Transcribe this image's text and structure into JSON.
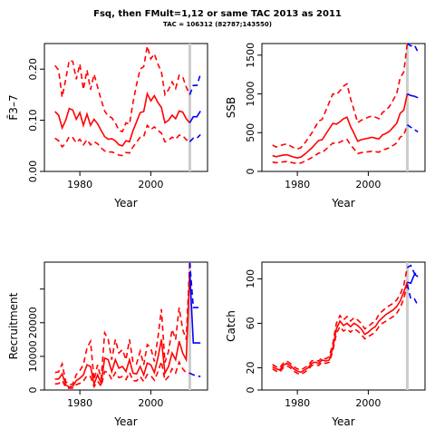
{
  "title": "Fsq, then FMult=1,12 or same TAC 2013 as 2011",
  "subtitle": "TAC = 106312 (82787;143550)",
  "colors": {
    "historical": "#ff0000",
    "projection": "#0000ff",
    "terminal_marker": "#cccccc"
  },
  "chart_data": [
    {
      "type": "line",
      "name": "fbar",
      "xlabel": "Year",
      "ylabel": "F̄3–7",
      "xlim": [
        1970,
        2016
      ],
      "ylim": [
        0,
        0.25
      ],
      "xticks": [
        1980,
        2000
      ],
      "yticks": [
        0.0,
        0.1,
        0.2
      ],
      "ytick_labels": [
        "0.00",
        "0.10",
        "0.20"
      ],
      "grid": false,
      "terminal_year": 2011,
      "x": [
        1973,
        1974,
        1975,
        1976,
        1977,
        1978,
        1979,
        1980,
        1981,
        1982,
        1983,
        1984,
        1985,
        1986,
        1987,
        1988,
        1989,
        1990,
        1991,
        1992,
        1993,
        1994,
        1995,
        1996,
        1997,
        1998,
        1999,
        2000,
        2001,
        2002,
        2003,
        2004,
        2005,
        2006,
        2007,
        2008,
        2009,
        2010,
        2011
      ],
      "series": [
        {
          "role": "estimate",
          "values": [
            0.117,
            0.11,
            0.085,
            0.1,
            0.123,
            0.12,
            0.102,
            0.115,
            0.09,
            0.112,
            0.09,
            0.102,
            0.093,
            0.08,
            0.068,
            0.063,
            0.064,
            0.06,
            0.052,
            0.05,
            0.06,
            0.058,
            0.08,
            0.097,
            0.115,
            0.117,
            0.152,
            0.138,
            0.148,
            0.135,
            0.125,
            0.095,
            0.1,
            0.11,
            0.103,
            0.118,
            0.116,
            0.103,
            0.095
          ]
        },
        {
          "role": "upper",
          "values": [
            0.207,
            0.198,
            0.145,
            0.18,
            0.217,
            0.215,
            0.18,
            0.21,
            0.16,
            0.198,
            0.16,
            0.19,
            0.165,
            0.14,
            0.118,
            0.108,
            0.105,
            0.095,
            0.08,
            0.078,
            0.095,
            0.092,
            0.135,
            0.17,
            0.2,
            0.205,
            0.245,
            0.22,
            0.23,
            0.21,
            0.195,
            0.15,
            0.16,
            0.175,
            0.162,
            0.188,
            0.185,
            0.165,
            0.15
          ]
        },
        {
          "role": "lower",
          "values": [
            0.065,
            0.06,
            0.048,
            0.055,
            0.068,
            0.066,
            0.056,
            0.063,
            0.052,
            0.062,
            0.052,
            0.058,
            0.054,
            0.046,
            0.04,
            0.038,
            0.038,
            0.036,
            0.032,
            0.031,
            0.037,
            0.036,
            0.048,
            0.057,
            0.067,
            0.068,
            0.09,
            0.082,
            0.087,
            0.08,
            0.075,
            0.058,
            0.061,
            0.067,
            0.063,
            0.071,
            0.07,
            0.062,
            0.058
          ]
        }
      ],
      "projection": {
        "x": [
          2011,
          2012,
          2013,
          2014
        ],
        "estimate": [
          0.095,
          0.107,
          0.107,
          0.118
        ],
        "upper": [
          0.15,
          0.168,
          0.168,
          0.19
        ],
        "lower": [
          0.058,
          0.065,
          0.065,
          0.072
        ]
      }
    },
    {
      "type": "line",
      "name": "ssb",
      "xlabel": "Year",
      "ylabel": "SSB",
      "xlim": [
        1970,
        2016
      ],
      "ylim": [
        0,
        1650
      ],
      "xticks": [
        1980,
        2000
      ],
      "yticks": [
        0,
        500,
        1000,
        1500
      ],
      "ytick_labels": [
        "0",
        "500",
        "1000",
        "1500"
      ],
      "grid": false,
      "terminal_year": 2011,
      "x": [
        1973,
        1974,
        1975,
        1976,
        1977,
        1978,
        1979,
        1980,
        1981,
        1982,
        1983,
        1984,
        1985,
        1986,
        1987,
        1988,
        1989,
        1990,
        1991,
        1992,
        1993,
        1994,
        1995,
        1996,
        1997,
        1998,
        1999,
        2000,
        2001,
        2002,
        2003,
        2004,
        2005,
        2006,
        2007,
        2008,
        2009,
        2010,
        2011
      ],
      "series": [
        {
          "role": "estimate",
          "values": [
            205,
            190,
            200,
            210,
            215,
            200,
            185,
            175,
            185,
            220,
            260,
            300,
            350,
            400,
            410,
            480,
            550,
            620,
            610,
            640,
            680,
            700,
            580,
            490,
            390,
            410,
            420,
            430,
            440,
            430,
            420,
            470,
            490,
            520,
            570,
            620,
            750,
            790,
            1000
          ]
        },
        {
          "role": "upper",
          "values": [
            340,
            315,
            330,
            345,
            355,
            330,
            305,
            290,
            305,
            360,
            425,
            490,
            570,
            650,
            670,
            780,
            890,
            1000,
            990,
            1040,
            1100,
            1130,
            940,
            790,
            630,
            660,
            680,
            700,
            715,
            700,
            680,
            760,
            790,
            840,
            920,
            1000,
            1210,
            1280,
            1650
          ]
        },
        {
          "role": "lower",
          "values": [
            120,
            112,
            118,
            124,
            127,
            118,
            109,
            103,
            109,
            130,
            153,
            177,
            206,
            236,
            242,
            283,
            324,
            366,
            360,
            377,
            401,
            413,
            342,
            289,
            230,
            242,
            248,
            254,
            260,
            254,
            248,
            277,
            289,
            307,
            336,
            366,
            442,
            466,
            600
          ]
        }
      ],
      "projection": {
        "x": [
          2011,
          2012,
          2013,
          2014
        ],
        "estimate": [
          1000,
          980,
          970,
          950
        ],
        "upper": [
          1650,
          1620,
          1630,
          1540
        ],
        "lower": [
          600,
          570,
          540,
          510
        ]
      }
    },
    {
      "type": "line",
      "name": "recruitment",
      "xlabel": "Year",
      "ylabel": "Recruitment",
      "xlim": [
        1970,
        2016
      ],
      "ylim": [
        0,
        38000
      ],
      "xticks": [
        1980,
        2000
      ],
      "yticks": [
        0,
        10000,
        20000,
        30000
      ],
      "ytick_labels": [
        "0",
        "10000",
        "20000",
        ""
      ],
      "grid": false,
      "terminal_year": 2011,
      "x": [
        1973,
        1974,
        1975,
        1976,
        1977,
        1978,
        1979,
        1980,
        1981,
        1982,
        1983,
        1984,
        1985,
        1986,
        1987,
        1988,
        1989,
        1990,
        1991,
        1992,
        1993,
        1994,
        1995,
        1996,
        1997,
        1998,
        1999,
        2000,
        2001,
        2002,
        2003,
        2004,
        2005,
        2006,
        2007,
        2008,
        2009,
        2010,
        2011
      ],
      "series": [
        {
          "role": "estimate",
          "values": [
            3200,
            3300,
            4800,
            1500,
            900,
            1100,
            2800,
            3500,
            4500,
            7500,
            7000,
            1800,
            4500,
            2000,
            9500,
            9000,
            5500,
            9000,
            6500,
            7000,
            5500,
            9000,
            5000,
            4800,
            7000,
            4500,
            8000,
            7500,
            5200,
            9500,
            15000,
            5000,
            7000,
            11000,
            9000,
            14500,
            11000,
            9000,
            35000
          ]
        },
        {
          "role": "upper",
          "values": [
            5200,
            5400,
            7800,
            2500,
            1500,
            1800,
            4600,
            5800,
            7500,
            12500,
            14500,
            3000,
            7500,
            3300,
            17000,
            15000,
            9000,
            15000,
            11000,
            12000,
            9000,
            15000,
            8200,
            7800,
            11500,
            7500,
            13500,
            12500,
            8500,
            15500,
            24000,
            8200,
            11500,
            18000,
            15000,
            24500,
            18000,
            15000,
            38000
          ]
        },
        {
          "role": "lower",
          "values": [
            1800,
            1900,
            2800,
            800,
            500,
            600,
            1600,
            2000,
            2600,
            4300,
            4000,
            1000,
            2600,
            1100,
            5500,
            5200,
            3100,
            5200,
            3700,
            4000,
            3100,
            5200,
            2800,
            2700,
            4000,
            2500,
            4600,
            4300,
            2900,
            5400,
            8500,
            2800,
            4000,
            6300,
            5100,
            8300,
            6300,
            5100,
            5000
          ]
        }
      ],
      "projection": {
        "x": [
          2011,
          2012,
          2013,
          2014
        ],
        "estimate": [
          35000,
          14000,
          14000,
          14000
        ],
        "upper": [
          38000,
          24500,
          24500,
          24500
        ],
        "lower": [
          5000,
          4500,
          4200,
          4000
        ]
      }
    },
    {
      "type": "line",
      "name": "catch",
      "xlabel": "Year",
      "ylabel": "Catch",
      "xlim": [
        1970,
        2016
      ],
      "ylim": [
        0,
        115
      ],
      "xticks": [
        1980,
        2000
      ],
      "yticks": [
        0,
        20,
        60,
        100
      ],
      "ytick_labels": [
        "0",
        "20",
        "60",
        "100"
      ],
      "grid": false,
      "terminal_year": 2011,
      "x": [
        1973,
        1974,
        1975,
        1976,
        1977,
        1978,
        1979,
        1980,
        1981,
        1982,
        1983,
        1984,
        1985,
        1986,
        1987,
        1988,
        1989,
        1990,
        1991,
        1992,
        1993,
        1994,
        1995,
        1996,
        1997,
        1998,
        1999,
        2000,
        2001,
        2002,
        2003,
        2004,
        2005,
        2006,
        2007,
        2008,
        2009,
        2010,
        2011
      ],
      "series": [
        {
          "role": "estimate",
          "values": [
            21,
            19,
            18,
            22,
            24,
            22,
            19,
            17,
            16,
            18,
            20,
            24,
            25,
            24,
            27,
            26,
            27,
            38,
            55,
            62,
            58,
            60,
            57,
            60,
            58,
            55,
            50,
            52,
            55,
            57,
            62,
            65,
            68,
            70,
            72,
            75,
            80,
            88,
            97
          ]
        },
        {
          "role": "upper",
          "values": [
            23,
            21,
            20,
            24,
            26,
            24,
            21,
            19,
            18,
            20,
            22,
            26,
            27,
            26,
            29,
            28,
            30,
            42,
            60,
            67,
            63,
            66,
            62,
            65,
            63,
            60,
            55,
            57,
            60,
            62,
            68,
            71,
            74,
            76,
            78,
            81,
            86,
            94,
            110
          ]
        },
        {
          "role": "lower",
          "values": [
            19,
            17,
            16,
            20,
            22,
            20,
            17,
            15,
            14,
            16,
            18,
            22,
            23,
            22,
            25,
            24,
            25,
            35,
            51,
            57,
            53,
            55,
            52,
            55,
            53,
            50,
            46,
            48,
            50,
            52,
            57,
            60,
            62,
            64,
            66,
            69,
            74,
            82,
            95
          ]
        }
      ],
      "projection": {
        "x": [
          2011,
          2012,
          2013,
          2014
        ],
        "estimate": [
          97,
          96,
          104,
          102
        ],
        "upper": [
          110,
          112,
          105,
          104
        ],
        "lower": [
          95,
          82,
          82,
          76
        ]
      }
    }
  ]
}
